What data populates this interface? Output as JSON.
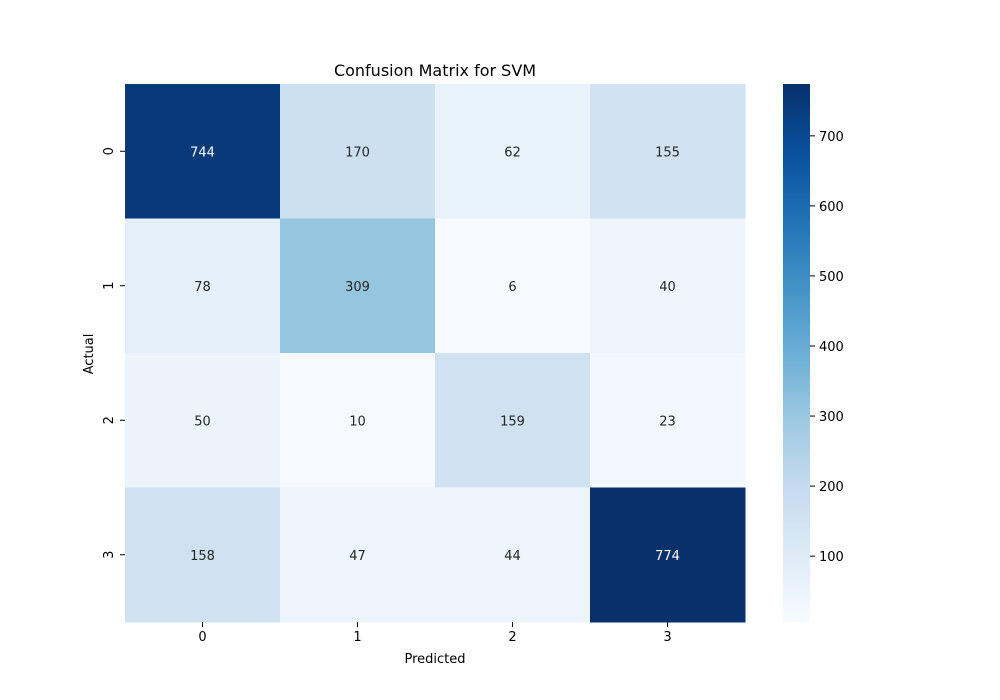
{
  "chart_data": {
    "type": "heatmap",
    "title": "Confusion Matrix for SVM",
    "xlabel": "Predicted",
    "ylabel": "Actual",
    "x_categories": [
      "0",
      "1",
      "2",
      "3"
    ],
    "y_categories": [
      "0",
      "1",
      "2",
      "3"
    ],
    "values": [
      [
        744,
        170,
        62,
        155
      ],
      [
        78,
        309,
        6,
        40
      ],
      [
        50,
        10,
        159,
        23
      ],
      [
        158,
        47,
        44,
        774
      ]
    ],
    "colormap": "Blues",
    "colorbar": {
      "range": [
        6,
        774
      ],
      "ticks": [
        100,
        200,
        300,
        400,
        500,
        600,
        700
      ]
    },
    "grid": false
  }
}
